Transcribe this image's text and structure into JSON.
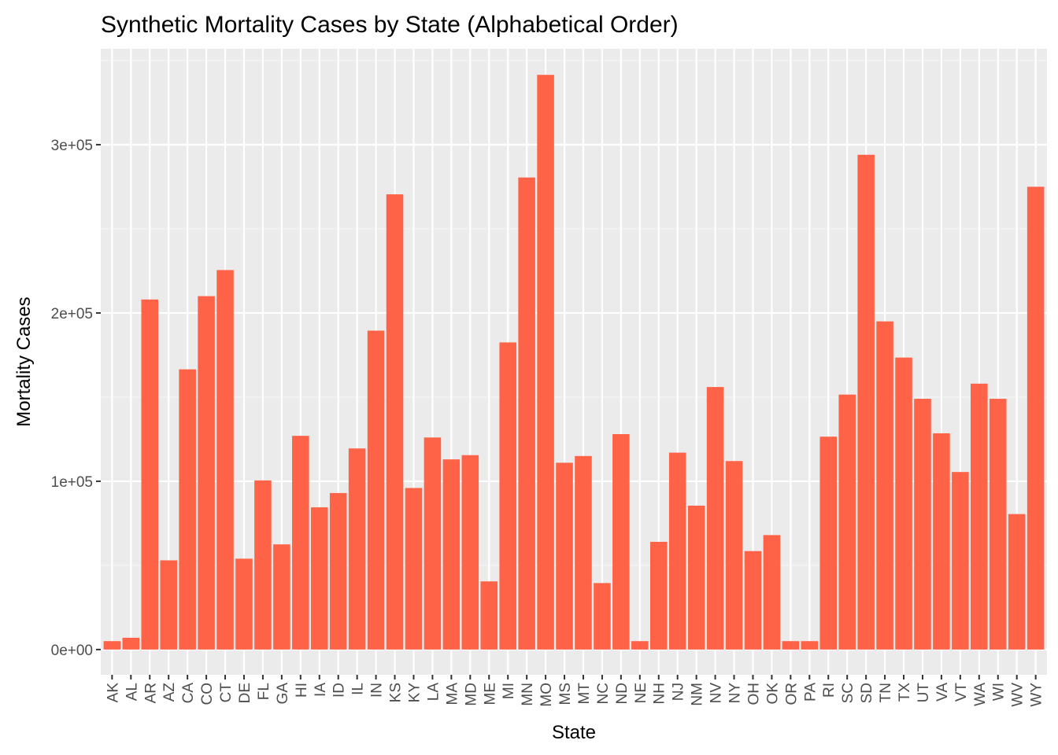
{
  "chart_data": {
    "type": "bar",
    "title": "Synthetic Mortality Cases by State (Alphabetical Order)",
    "xlabel": "State",
    "ylabel": "Mortality Cases",
    "categories": [
      "AK",
      "AL",
      "AR",
      "AZ",
      "CA",
      "CO",
      "CT",
      "DE",
      "FL",
      "GA",
      "HI",
      "IA",
      "ID",
      "IL",
      "IN",
      "KS",
      "KY",
      "LA",
      "MA",
      "MD",
      "ME",
      "MI",
      "MN",
      "MO",
      "MS",
      "MT",
      "NC",
      "ND",
      "NE",
      "NH",
      "NJ",
      "NM",
      "NV",
      "NY",
      "OH",
      "OK",
      "OR",
      "PA",
      "RI",
      "SC",
      "SD",
      "TN",
      "TX",
      "UT",
      "VA",
      "VT",
      "WA",
      "WI",
      "WV",
      "WY"
    ],
    "values": [
      5000,
      7000,
      208000,
      53000,
      166500,
      210000,
      225500,
      54000,
      100500,
      62500,
      127000,
      84500,
      93000,
      119500,
      189500,
      270500,
      96000,
      126000,
      113000,
      115500,
      40500,
      182500,
      280500,
      341500,
      111000,
      115000,
      39500,
      128000,
      5000,
      64000,
      117000,
      85500,
      156000,
      112000,
      58500,
      68000,
      5000,
      5000,
      126500,
      151500,
      294000,
      195000,
      173500,
      149000,
      128500,
      105500,
      158000,
      149000,
      80500,
      275000
    ],
    "ylim": [
      -15000,
      357000
    ],
    "yticks": [
      0,
      100000,
      200000,
      300000
    ],
    "ytick_labels": [
      "0e+00",
      "1e+05",
      "2e+05",
      "3e+05"
    ],
    "grid": true,
    "legend": "none",
    "colors": {
      "bar": "#FF6347",
      "panel": "#EBEBEB",
      "grid_major": "#FFFFFF",
      "grid_minor": "#F5F5F5",
      "tick_text": "#4D4D4D"
    }
  }
}
